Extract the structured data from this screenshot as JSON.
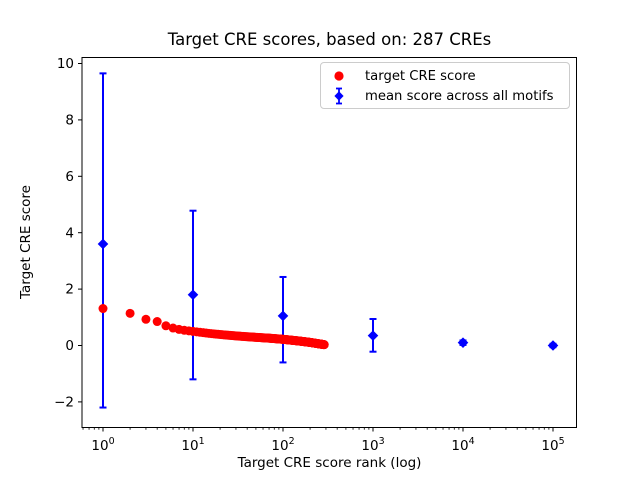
{
  "figure": {
    "background": "#ffffff"
  },
  "chart_data": {
    "type": "scatter",
    "title": "Target CRE scores, based on: 287 CREs",
    "xlabel": "Target CRE score rank (log)",
    "ylabel": "Target CRE score",
    "x_scale": "log",
    "xlim": [
      0.58,
      182000
    ],
    "ylim": [
      -2.9,
      10.2
    ],
    "x_tick_exponents": [
      0,
      1,
      2,
      3,
      4,
      5
    ],
    "y_ticks": [
      -2,
      0,
      2,
      4,
      6,
      8,
      10
    ],
    "grid": false,
    "legend_position": "upper right",
    "series": [
      {
        "name": "target CRE score",
        "marker": "circle",
        "color": "#ff0000",
        "n_points": 287,
        "rank_range": [
          1,
          287
        ],
        "control_points": [
          [
            1,
            1.31
          ],
          [
            2,
            1.14
          ],
          [
            3,
            0.93
          ],
          [
            4,
            0.85
          ],
          [
            5,
            0.7
          ],
          [
            6,
            0.62
          ],
          [
            7,
            0.57
          ],
          [
            8,
            0.54
          ],
          [
            9,
            0.52
          ],
          [
            10,
            0.5
          ],
          [
            15,
            0.43
          ],
          [
            20,
            0.39
          ],
          [
            30,
            0.34
          ],
          [
            50,
            0.29
          ],
          [
            70,
            0.26
          ],
          [
            100,
            0.22
          ],
          [
            150,
            0.16
          ],
          [
            200,
            0.11
          ],
          [
            250,
            0.06
          ],
          [
            287,
            0.03
          ]
        ]
      },
      {
        "name": "mean score across all motifs",
        "marker": "diamond",
        "color": "#0000ff",
        "points": [
          {
            "x": 1,
            "y": 3.6,
            "lo": -2.2,
            "hi": 9.65
          },
          {
            "x": 10,
            "y": 1.8,
            "lo": -1.2,
            "hi": 4.78
          },
          {
            "x": 100,
            "y": 1.05,
            "lo": -0.6,
            "hi": 2.43
          },
          {
            "x": 1000,
            "y": 0.35,
            "lo": -0.22,
            "hi": 0.94
          },
          {
            "x": 10000,
            "y": 0.1,
            "lo": 0.02,
            "hi": 0.18
          },
          {
            "x": 100000,
            "y": 0.0,
            "lo": -0.06,
            "hi": 0.06
          }
        ]
      }
    ]
  },
  "legend": {
    "items": [
      {
        "label": "target CRE score"
      },
      {
        "label": "mean score across all motifs"
      }
    ]
  }
}
